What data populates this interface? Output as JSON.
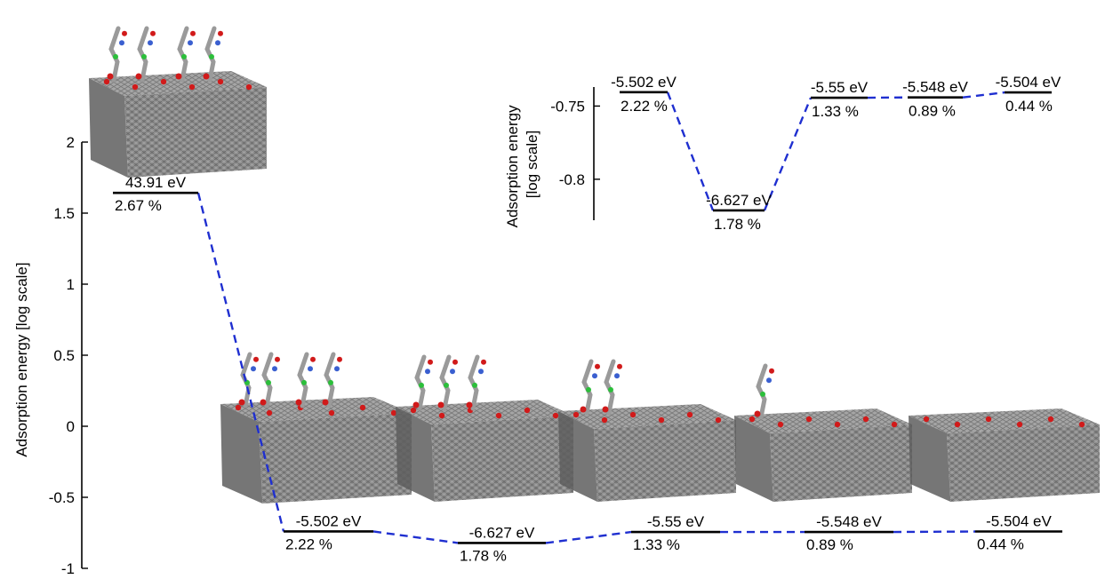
{
  "chart_data": [
    {
      "type": "line",
      "ylabel": "Adsorption energy [log scale]",
      "ylim": [
        -1,
        2
      ],
      "yticks": [
        -1,
        -0.5,
        0,
        0.5,
        1,
        1.5,
        2
      ],
      "ytick_labels": [
        "-1",
        "-0.5",
        "0",
        "0.5",
        "1",
        "1.5",
        "2"
      ],
      "grid": false,
      "levels": [
        {
          "value": 1.6426,
          "energy_label": "43.91 eV",
          "percent_label": "2.67 %"
        },
        {
          "value": -0.7405,
          "energy_label": "-5.502 eV",
          "percent_label": "2.22 %"
        },
        {
          "value": -0.8213,
          "energy_label": "-6.627 eV",
          "percent_label": "1.78 %"
        },
        {
          "value": -0.7443,
          "energy_label": "-5.55 eV",
          "percent_label": "1.33 %"
        },
        {
          "value": -0.7441,
          "energy_label": "-5.548 eV",
          "percent_label": "0.89 %"
        },
        {
          "value": -0.7407,
          "energy_label": "-5.504 eV",
          "percent_label": "0.44 %"
        }
      ],
      "series_color": "#1f2fd0",
      "level_color": "#000000"
    },
    {
      "type": "line",
      "ylabel": "Adsorption energy\n[log scale]",
      "ylim": [
        -0.828,
        -0.737
      ],
      "yticks": [
        -0.8,
        -0.75
      ],
      "ytick_labels": [
        "-0.8",
        "-0.75"
      ],
      "grid": false,
      "levels": [
        {
          "value": -0.7405,
          "energy_label": "-5.502 eV",
          "percent_label": "2.22 %"
        },
        {
          "value": -0.8213,
          "energy_label": "-6.627 eV",
          "percent_label": "1.78 %"
        },
        {
          "value": -0.7443,
          "energy_label": "-5.55 eV",
          "percent_label": "1.33 %"
        },
        {
          "value": -0.7441,
          "energy_label": "-5.548 eV",
          "percent_label": "0.89 %"
        },
        {
          "value": -0.7407,
          "energy_label": "-5.504 eV",
          "percent_label": "0.44 %"
        }
      ],
      "series_color": "#1f2fd0",
      "level_color": "#000000"
    }
  ],
  "colors": {
    "surface": "#8a8a8a",
    "surface_dark": "#5e5e5e",
    "oxygen": "#d11a1a",
    "nitrogen": "#3a5fd0",
    "chlorine": "#2bbf3a",
    "carbon": "#9a9a9a"
  },
  "structure_images": [
    {
      "name": "structure-1",
      "molecules": 4
    },
    {
      "name": "structure-2",
      "molecules": 4
    },
    {
      "name": "structure-3",
      "molecules": 3
    },
    {
      "name": "structure-4",
      "molecules": 2
    },
    {
      "name": "structure-5",
      "molecules": 1
    },
    {
      "name": "structure-6",
      "molecules": 0
    }
  ]
}
